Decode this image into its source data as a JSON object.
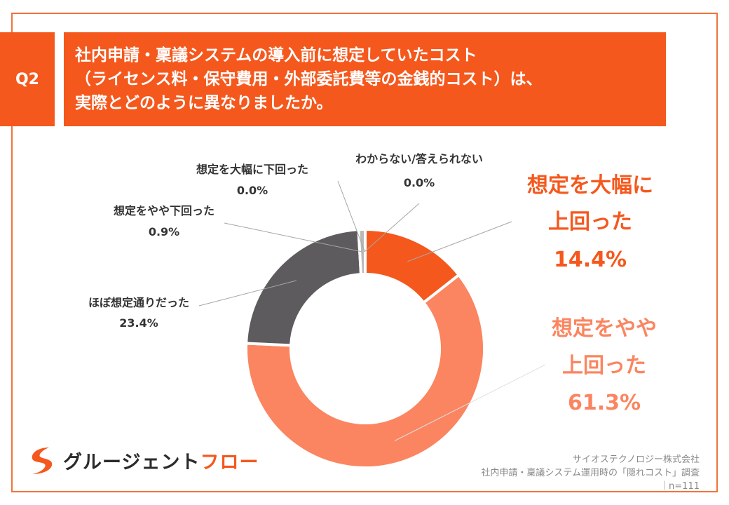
{
  "question": {
    "badge": "Q2",
    "lines": [
      "社内申請・稟議システムの導入前に想定していたコスト",
      "（ライセンス料・保守費用・外部委託費等の金銭的コスト）は、",
      "実際とどのように異なりましたか。"
    ]
  },
  "chart_data": {
    "type": "pie",
    "donut": true,
    "slices": [
      {
        "label_lines": [
          "想定を大幅に",
          "上回った"
        ],
        "value": 14.4,
        "display": "14.4%",
        "color": "#f5581d",
        "label_color": "#f5581d"
      },
      {
        "label_lines": [
          "想定をやや",
          "上回った"
        ],
        "value": 61.3,
        "display": "61.3%",
        "color": "#fb8560",
        "label_color": "#fb8560"
      },
      {
        "label_lines": [
          "ほぼ想定通りだった"
        ],
        "value": 23.4,
        "display": "23.4%",
        "color": "#5e5b5e",
        "label_color": "#333333"
      },
      {
        "label_lines": [
          "想定をやや下回った"
        ],
        "value": 0.9,
        "display": "0.9%",
        "color": "#b9b9b9",
        "label_color": "#333333"
      },
      {
        "label_lines": [
          "想定を大幅に下回った"
        ],
        "value": 0.0,
        "display": "0.0%",
        "color": "#888888",
        "label_color": "#333333"
      },
      {
        "label_lines": [
          "わからない/答えられない"
        ],
        "value": 0.0,
        "display": "0.0%",
        "color": "#cccccc",
        "label_color": "#333333"
      }
    ]
  },
  "logo": {
    "text_a": "グルージェント",
    "text_b": "フロー",
    "color": "#f5581d"
  },
  "source": {
    "company": "サイオステクノロジー株式会社",
    "survey": "社内申請・稟議システム運用時の「隠れコスト」調査",
    "n": "｜n=111"
  }
}
